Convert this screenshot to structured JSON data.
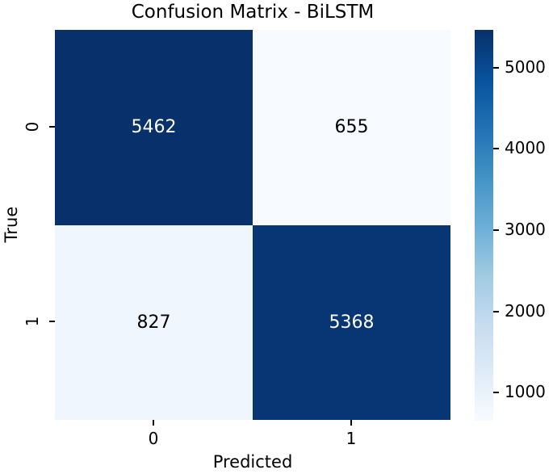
{
  "figure": {
    "title": "Confusion Matrix - BiLSTM"
  },
  "chart_data": {
    "type": "heatmap",
    "title": "Confusion Matrix - BiLSTM",
    "xlabel": "Predicted",
    "ylabel": "True",
    "x_tick_labels": [
      "0",
      "1"
    ],
    "y_tick_labels": [
      "0",
      "1"
    ],
    "matrix": [
      [
        5462,
        655
      ],
      [
        827,
        5368
      ]
    ],
    "vmin": 655,
    "vmax": 5462,
    "colormap": "Blues",
    "colormap_stops": [
      "#f7fbff",
      "#deebf7",
      "#c6dbef",
      "#9ecae1",
      "#6baed6",
      "#4292c6",
      "#2171b5",
      "#08519c",
      "#08306b"
    ],
    "colorbar_ticks": [
      1000,
      2000,
      3000,
      4000,
      5000
    ],
    "annotation_text_colors": {
      "on_dark": "#ffffff",
      "on_light": "#000000"
    },
    "legend_position": "right",
    "grid": false,
    "axis_tick_color": "#000000"
  }
}
